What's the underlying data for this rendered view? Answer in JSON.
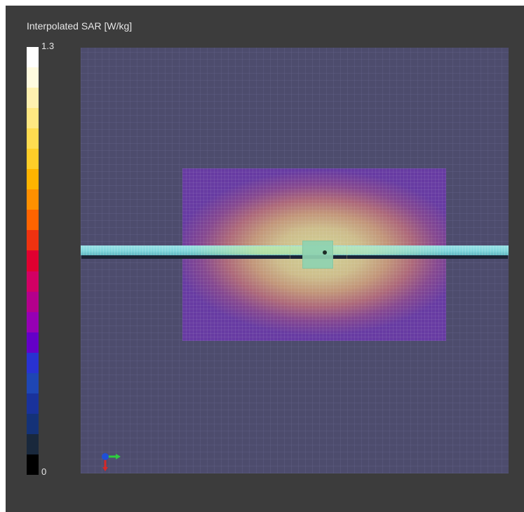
{
  "legend": {
    "title": "Interpolated SAR [W/kg]",
    "max_label": "1.3",
    "min_label": "0",
    "colormap": [
      "#ffffff",
      "#fffbe0",
      "#fff1b0",
      "#ffe882",
      "#ffdc50",
      "#ffce28",
      "#ffb400",
      "#ff9000",
      "#ff6400",
      "#ee3210",
      "#e00030",
      "#d20064",
      "#b4008c",
      "#9600b4",
      "#6400c8",
      "#2832d2",
      "#1e46b4",
      "#19329b",
      "#143278",
      "#19283c",
      "#000000"
    ]
  },
  "scene": {
    "background_color": "#4d4c6d",
    "conductor_color": "#7fd6dc",
    "feed_color": "#8fd3b1"
  },
  "axes_triad": {
    "x_color": "#2ecc40",
    "y_color": "#1f4fd6",
    "z_color": "#d62828"
  }
}
